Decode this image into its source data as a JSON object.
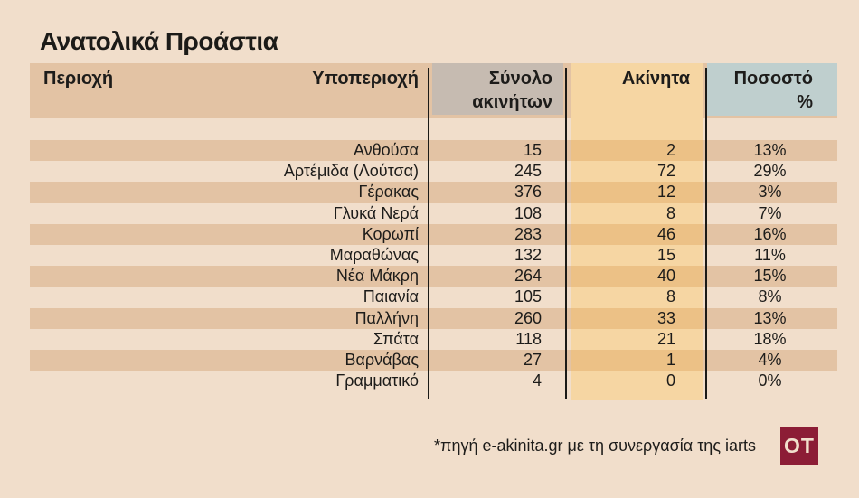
{
  "title": "Ανατολικά Προάστια",
  "table": {
    "headers": {
      "region": "Περιοχή",
      "subregion": "Υποπεριοχή",
      "total": "Σύνολο\nακινήτων",
      "akinita": "Ακίνητα",
      "percent": "Ποσοστό\n%"
    }
  },
  "chart_data": {
    "type": "table",
    "title": "Ανατολικά Προάστια",
    "columns": [
      "Περιοχή",
      "Υποπεριοχή",
      "Σύνολο ακινήτων",
      "Ακίνητα",
      "Ποσοστό %"
    ],
    "rows": [
      [
        "",
        "Ανθούσα",
        15,
        2,
        "13%"
      ],
      [
        "",
        "Αρτέμιδα (Λούτσα)",
        245,
        72,
        "29%"
      ],
      [
        "",
        "Γέρακας",
        376,
        12,
        "3%"
      ],
      [
        "",
        "Γλυκά Νερά",
        108,
        8,
        "7%"
      ],
      [
        "",
        "Κορωπί",
        283,
        46,
        "16%"
      ],
      [
        "",
        "Μαραθώνας",
        132,
        15,
        "11%"
      ],
      [
        "",
        "Νέα Μάκρη",
        264,
        40,
        "15%"
      ],
      [
        "",
        "Παιανία",
        105,
        8,
        "8%"
      ],
      [
        "",
        "Παλλήνη",
        260,
        33,
        "13%"
      ],
      [
        "",
        "Σπάτα",
        118,
        21,
        "18%"
      ],
      [
        "",
        "Βαρνάβας",
        27,
        1,
        "4%"
      ],
      [
        "",
        "Γραμματικό",
        4,
        0,
        "0%"
      ]
    ],
    "layout": {
      "striped_rows": true,
      "highlighted_column": "Ακίνητα",
      "region_column_empty": true
    }
  },
  "footer": {
    "source": "*πηγή e-akinita.gr με τη συνεργασία της iarts",
    "logo_text": "OT"
  },
  "colors": {
    "background": "#f1decb",
    "stripe_tan": "#e3c3a4",
    "band_orange_light": "#f6d6a3",
    "band_orange_dark": "#ecc186",
    "header_gray": "#c6bbb1",
    "header_blue": "#bfcfce",
    "divider_black": "#1b1a17",
    "logo_maroon": "#8c1d36",
    "text": "#1d1c1a"
  }
}
